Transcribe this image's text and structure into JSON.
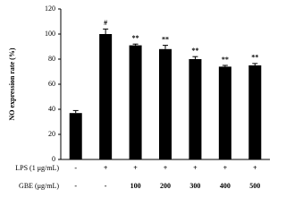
{
  "chart_data": {
    "type": "bar",
    "y_label": "NO expression rate (%)",
    "categories": [
      null,
      null,
      null,
      null,
      null,
      null,
      null
    ],
    "values": [
      37,
      100,
      91,
      88,
      80,
      74,
      75
    ],
    "errors": [
      2,
      4,
      1,
      3,
      2,
      1,
      1.5
    ],
    "annotations": [
      null,
      "#",
      "**",
      "**",
      "**",
      "**",
      "**"
    ],
    "color": "#000000",
    "ylim": [
      0,
      120
    ],
    "yticks": [
      0,
      20,
      40,
      60,
      80,
      100,
      120
    ],
    "rows": [
      {
        "label": "LPS (1 μg/mL)",
        "entries": [
          "-",
          "+",
          "+",
          "+",
          "+",
          "+",
          "+"
        ]
      },
      {
        "label": "GBE (μg/mL)",
        "entries": [
          "-",
          "-",
          "100",
          "200",
          "300",
          "400",
          "500"
        ]
      }
    ]
  }
}
